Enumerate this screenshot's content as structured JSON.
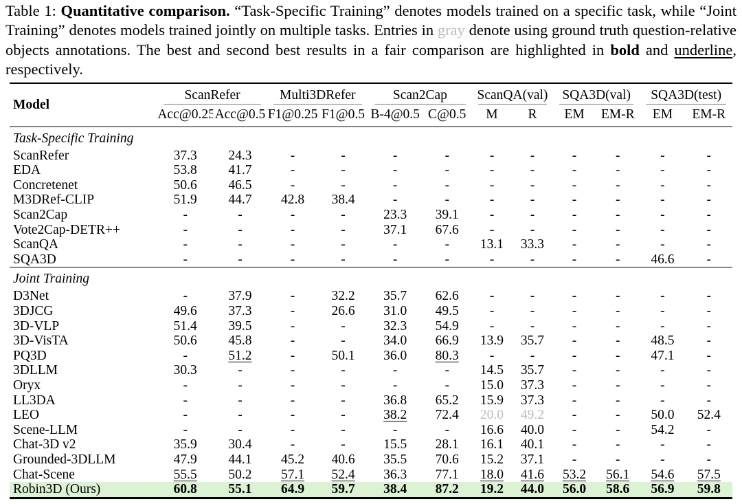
{
  "colors": {
    "highlight_green": "#dbf2d3",
    "gray_text": "#bdbdbd"
  },
  "caption": {
    "segments": [
      {
        "text": "Table 1: ",
        "style": "normal"
      },
      {
        "text": "Quantitative comparison.",
        "style": "bold"
      },
      {
        "text": " “Task-Specific Training” denotes models trained on a specific task, while “Joint Training” denotes models trained jointly on multiple tasks. Entries in ",
        "style": "normal"
      },
      {
        "text": "gray",
        "style": "gray"
      },
      {
        "text": " denote using ground truth question-relative objects annotations. The best and second best results in a fair comparison are highlighted in ",
        "style": "normal"
      },
      {
        "text": "bold",
        "style": "bold"
      },
      {
        "text": " and ",
        "style": "normal"
      },
      {
        "text": "underline",
        "style": "underline"
      },
      {
        "text": ", respectively.",
        "style": "normal"
      }
    ]
  },
  "chart_data": {
    "type": "table",
    "title": "Table 1: Quantitative comparison",
    "column_groups": [
      "ScanRefer",
      "Multi3DRefer",
      "Scan2Cap",
      "ScanQA(val)",
      "SQA3D(val)",
      "SQA3D(test)"
    ],
    "columns": [
      "Acc@0.25",
      "Acc@0.5",
      "F1@0.25",
      "F1@0.5",
      "B-4@0.5",
      "C@0.5",
      "M",
      "R",
      "EM",
      "EM-R",
      "EM",
      "EM-R"
    ]
  },
  "table": {
    "model_header": "Model",
    "groups": [
      {
        "label": "ScanRefer",
        "cols": [
          "Acc@0.25",
          "Acc@0.5"
        ]
      },
      {
        "label": "Multi3DRefer",
        "cols": [
          "F1@0.25",
          "F1@0.5"
        ]
      },
      {
        "label": "Scan2Cap",
        "cols": [
          "B-4@0.5",
          "C@0.5"
        ]
      },
      {
        "label": "ScanQA(val)",
        "cols": [
          "M",
          "R"
        ]
      },
      {
        "label": "SQA3D(val)",
        "cols": [
          "EM",
          "EM-R"
        ]
      },
      {
        "label": "SQA3D(test)",
        "cols": [
          "EM",
          "EM-R"
        ]
      }
    ],
    "sections": [
      {
        "label": "Task-Specific Training",
        "rows": [
          {
            "model": "ScanRefer",
            "values": [
              "37.3",
              "24.3",
              "-",
              "-",
              "-",
              "-",
              "-",
              "-",
              "-",
              "-",
              "-",
              "-"
            ]
          },
          {
            "model": "EDA",
            "values": [
              "53.8",
              "41.7",
              "-",
              "-",
              "-",
              "-",
              "-",
              "-",
              "-",
              "-",
              "-",
              "-"
            ]
          },
          {
            "model": "Concretenet",
            "values": [
              "50.6",
              "46.5",
              "-",
              "-",
              "-",
              "-",
              "-",
              "-",
              "-",
              "-",
              "-",
              "-"
            ]
          },
          {
            "model": "M3DRef-CLIP",
            "values": [
              "51.9",
              "44.7",
              "42.8",
              "38.4",
              "-",
              "-",
              "-",
              "-",
              "-",
              "-",
              "-",
              "-"
            ]
          },
          {
            "model": "Scan2Cap",
            "values": [
              "-",
              "-",
              "-",
              "-",
              "23.3",
              "39.1",
              "-",
              "-",
              "-",
              "-",
              "-",
              "-"
            ]
          },
          {
            "model": "Vote2Cap-DETR++",
            "values": [
              "-",
              "-",
              "-",
              "-",
              "37.1",
              "67.6",
              "-",
              "-",
              "-",
              "-",
              "-",
              "-"
            ]
          },
          {
            "model": "ScanQA",
            "values": [
              "-",
              "-",
              "-",
              "-",
              "-",
              "-",
              "13.1",
              "33.3",
              "-",
              "-",
              "-",
              "-"
            ]
          },
          {
            "model": "SQA3D",
            "values": [
              "-",
              "-",
              "-",
              "-",
              "-",
              "-",
              "-",
              "-",
              "-",
              "-",
              "46.6",
              "-"
            ]
          }
        ]
      },
      {
        "label": "Joint Training",
        "rows": [
          {
            "model": "D3Net",
            "values": [
              "-",
              "37.9",
              "-",
              "32.2",
              "35.7",
              "62.6",
              "-",
              "-",
              "-",
              "-",
              "-",
              "-"
            ]
          },
          {
            "model": "3DJCG",
            "values": [
              "49.6",
              "37.3",
              "-",
              "26.6",
              "31.0",
              "49.5",
              "-",
              "-",
              "-",
              "-",
              "-",
              "-"
            ]
          },
          {
            "model": "3D-VLP",
            "values": [
              "51.4",
              "39.5",
              "-",
              "-",
              "32.3",
              "54.9",
              "-",
              "-",
              "-",
              "-",
              "-",
              "-"
            ]
          },
          {
            "model": "3D-VisTA",
            "values": [
              "50.6",
              "45.8",
              "-",
              "-",
              "34.0",
              "66.9",
              "13.9",
              "35.7",
              "-",
              "-",
              "48.5",
              "-"
            ]
          },
          {
            "model": "PQ3D",
            "values": [
              "-",
              "51.2",
              "-",
              "50.1",
              "36.0",
              "80.3",
              "-",
              "-",
              "-",
              "-",
              "47.1",
              "-"
            ],
            "marks": [
              "",
              "u",
              "",
              "",
              "",
              "u",
              "",
              "",
              "",
              "",
              "",
              ""
            ]
          },
          {
            "model": "3DLLM",
            "values": [
              "30.3",
              "-",
              "-",
              "-",
              "-",
              "-",
              "14.5",
              "35.7",
              "-",
              "-",
              "-",
              "-"
            ]
          },
          {
            "model": "Oryx",
            "values": [
              "-",
              "-",
              "-",
              "-",
              "-",
              "-",
              "15.0",
              "37.3",
              "-",
              "-",
              "-",
              "-"
            ]
          },
          {
            "model": "LL3DA",
            "values": [
              "-",
              "-",
              "-",
              "-",
              "36.8",
              "65.2",
              "15.9",
              "37.3",
              "-",
              "-",
              "-",
              "-"
            ]
          },
          {
            "model": "LEO",
            "values": [
              "-",
              "-",
              "-",
              "-",
              "38.2",
              "72.4",
              "20.0",
              "49.2",
              "-",
              "-",
              "50.0",
              "52.4"
            ],
            "marks": [
              "",
              "",
              "",
              "",
              "u",
              "",
              "g",
              "g",
              "",
              "",
              "",
              ""
            ]
          },
          {
            "model": "Scene-LLM",
            "values": [
              "-",
              "-",
              "-",
              "-",
              "-",
              "-",
              "16.6",
              "40.0",
              "-",
              "-",
              "54.2",
              "-"
            ]
          },
          {
            "model": "Chat-3D v2",
            "values": [
              "35.9",
              "30.4",
              "-",
              "-",
              "15.5",
              "28.1",
              "16.1",
              "40.1",
              "-",
              "-",
              "-",
              "-"
            ]
          },
          {
            "model": "Grounded-3DLLM",
            "values": [
              "47.9",
              "44.1",
              "45.2",
              "40.6",
              "35.5",
              "70.6",
              "15.2",
              "37.1",
              "-",
              "-",
              "-",
              "-"
            ]
          },
          {
            "model": "Chat-Scene",
            "values": [
              "55.5",
              "50.2",
              "57.1",
              "52.4",
              "36.3",
              "77.1",
              "18.0",
              "41.6",
              "53.2",
              "56.1",
              "54.6",
              "57.5"
            ],
            "marks": [
              "u",
              "",
              "u",
              "u",
              "",
              "",
              "u",
              "u",
              "u",
              "u",
              "u",
              "u"
            ]
          },
          {
            "model": "Robin3D (Ours)",
            "values": [
              "60.8",
              "55.1",
              "64.9",
              "59.7",
              "38.4",
              "87.2",
              "19.2",
              "44.0",
              "56.0",
              "58.6",
              "56.9",
              "59.8"
            ],
            "marks": [
              "b",
              "b",
              "b",
              "b",
              "b",
              "b",
              "b",
              "b",
              "b",
              "b",
              "b",
              "b"
            ],
            "highlight": true
          }
        ]
      }
    ]
  }
}
